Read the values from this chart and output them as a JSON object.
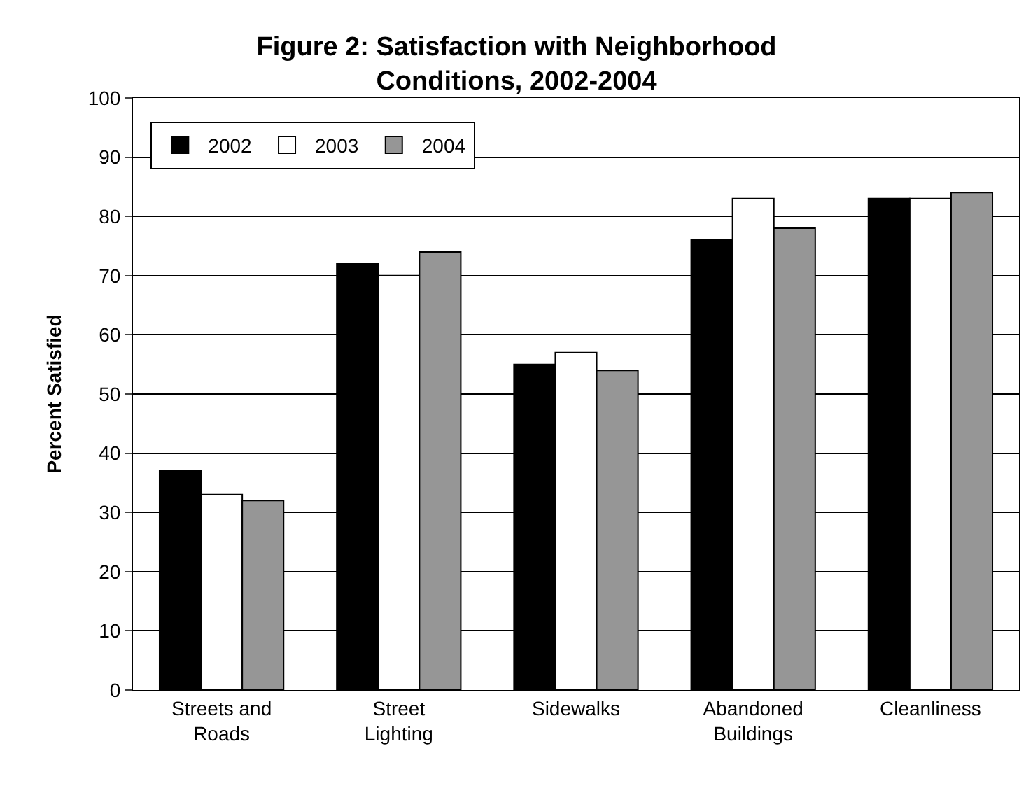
{
  "chart_data": {
    "type": "bar",
    "title": "Figure 2: Satisfaction with Neighborhood\nConditions, 2002-2004",
    "ylabel": "Percent Satisfied",
    "categories": [
      "Streets and\nRoads",
      "Street\nLighting",
      "Sidewalks",
      "Abandoned\nBuildings",
      "Cleanliness"
    ],
    "series": [
      {
        "name": "2002",
        "color": "#000000",
        "values": [
          37,
          72,
          55,
          76,
          83
        ]
      },
      {
        "name": "2003",
        "color": "#ffffff",
        "values": [
          33,
          70,
          57,
          83,
          83
        ]
      },
      {
        "name": "2004",
        "color": "#969696",
        "values": [
          32,
          74,
          54,
          78,
          84
        ]
      }
    ],
    "ylim": [
      0,
      100
    ],
    "yticks": [
      0,
      10,
      20,
      30,
      40,
      50,
      60,
      70,
      80,
      90,
      100
    ],
    "grid": "y",
    "legend": "top left"
  }
}
